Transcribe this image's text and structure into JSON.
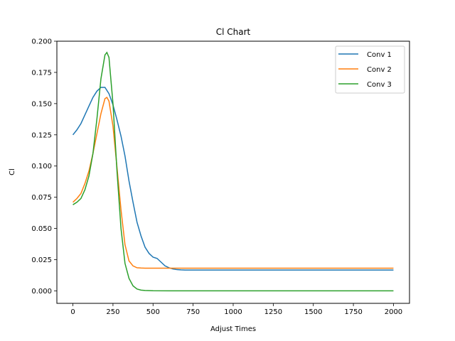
{
  "chart_data": {
    "type": "line",
    "title": "Cl Chart",
    "xlabel": "Adjust Times",
    "ylabel": "Cl",
    "xlim": [
      -100,
      2100
    ],
    "ylim": [
      -0.01,
      0.2
    ],
    "xticks": [
      0,
      250,
      500,
      750,
      1000,
      1250,
      1500,
      1750,
      2000
    ],
    "yticks": [
      0.0,
      0.025,
      0.05,
      0.075,
      0.1,
      0.125,
      0.15,
      0.175,
      0.2
    ],
    "xtick_labels": [
      "0",
      "250",
      "500",
      "750",
      "1000",
      "1250",
      "1500",
      "1750",
      "2000"
    ],
    "ytick_labels": [
      "0.000",
      "0.025",
      "0.050",
      "0.075",
      "0.100",
      "0.125",
      "0.150",
      "0.175",
      "0.200"
    ],
    "grid": false,
    "legend_position": "top-right",
    "series": [
      {
        "name": "Conv 1",
        "color": "#1f77b4",
        "x": [
          0,
          25,
          50,
          75,
          100,
          125,
          150,
          175,
          200,
          225,
          250,
          275,
          300,
          325,
          350,
          375,
          400,
          425,
          450,
          475,
          500,
          525,
          550,
          575,
          600,
          625,
          650,
          675,
          700,
          800,
          1000,
          1250,
          1500,
          1750,
          2000
        ],
        "y": [
          0.125,
          0.129,
          0.134,
          0.141,
          0.148,
          0.155,
          0.16,
          0.163,
          0.163,
          0.158,
          0.149,
          0.137,
          0.124,
          0.108,
          0.088,
          0.071,
          0.055,
          0.044,
          0.035,
          0.03,
          0.027,
          0.026,
          0.023,
          0.02,
          0.0185,
          0.0175,
          0.017,
          0.0168,
          0.0167,
          0.0167,
          0.0167,
          0.0167,
          0.0167,
          0.0167,
          0.0167
        ]
      },
      {
        "name": "Conv 2",
        "color": "#ff7f0e",
        "x": [
          0,
          25,
          50,
          75,
          100,
          125,
          150,
          175,
          200,
          212,
          225,
          250,
          275,
          300,
          325,
          350,
          375,
          400,
          425,
          450,
          500,
          600,
          800,
          1000,
          1250,
          1500,
          1750,
          2000
        ],
        "y": [
          0.071,
          0.074,
          0.078,
          0.086,
          0.096,
          0.11,
          0.126,
          0.142,
          0.154,
          0.155,
          0.152,
          0.132,
          0.099,
          0.065,
          0.037,
          0.024,
          0.02,
          0.0185,
          0.0183,
          0.0182,
          0.0182,
          0.0182,
          0.0182,
          0.0182,
          0.0182,
          0.0182,
          0.0182,
          0.0182
        ]
      },
      {
        "name": "Conv 3",
        "color": "#2ca02c",
        "x": [
          0,
          25,
          50,
          75,
          100,
          125,
          150,
          175,
          200,
          212,
          225,
          250,
          275,
          300,
          325,
          350,
          375,
          400,
          425,
          450,
          500,
          600,
          800,
          1000,
          1250,
          1500,
          1750,
          2000
        ],
        "y": [
          0.069,
          0.071,
          0.074,
          0.081,
          0.092,
          0.11,
          0.138,
          0.17,
          0.189,
          0.191,
          0.187,
          0.15,
          0.096,
          0.05,
          0.022,
          0.01,
          0.004,
          0.0015,
          0.0006,
          0.0003,
          0.0001,
          0.0,
          0.0,
          0.0,
          0.0,
          0.0,
          0.0,
          0.0
        ]
      }
    ]
  }
}
